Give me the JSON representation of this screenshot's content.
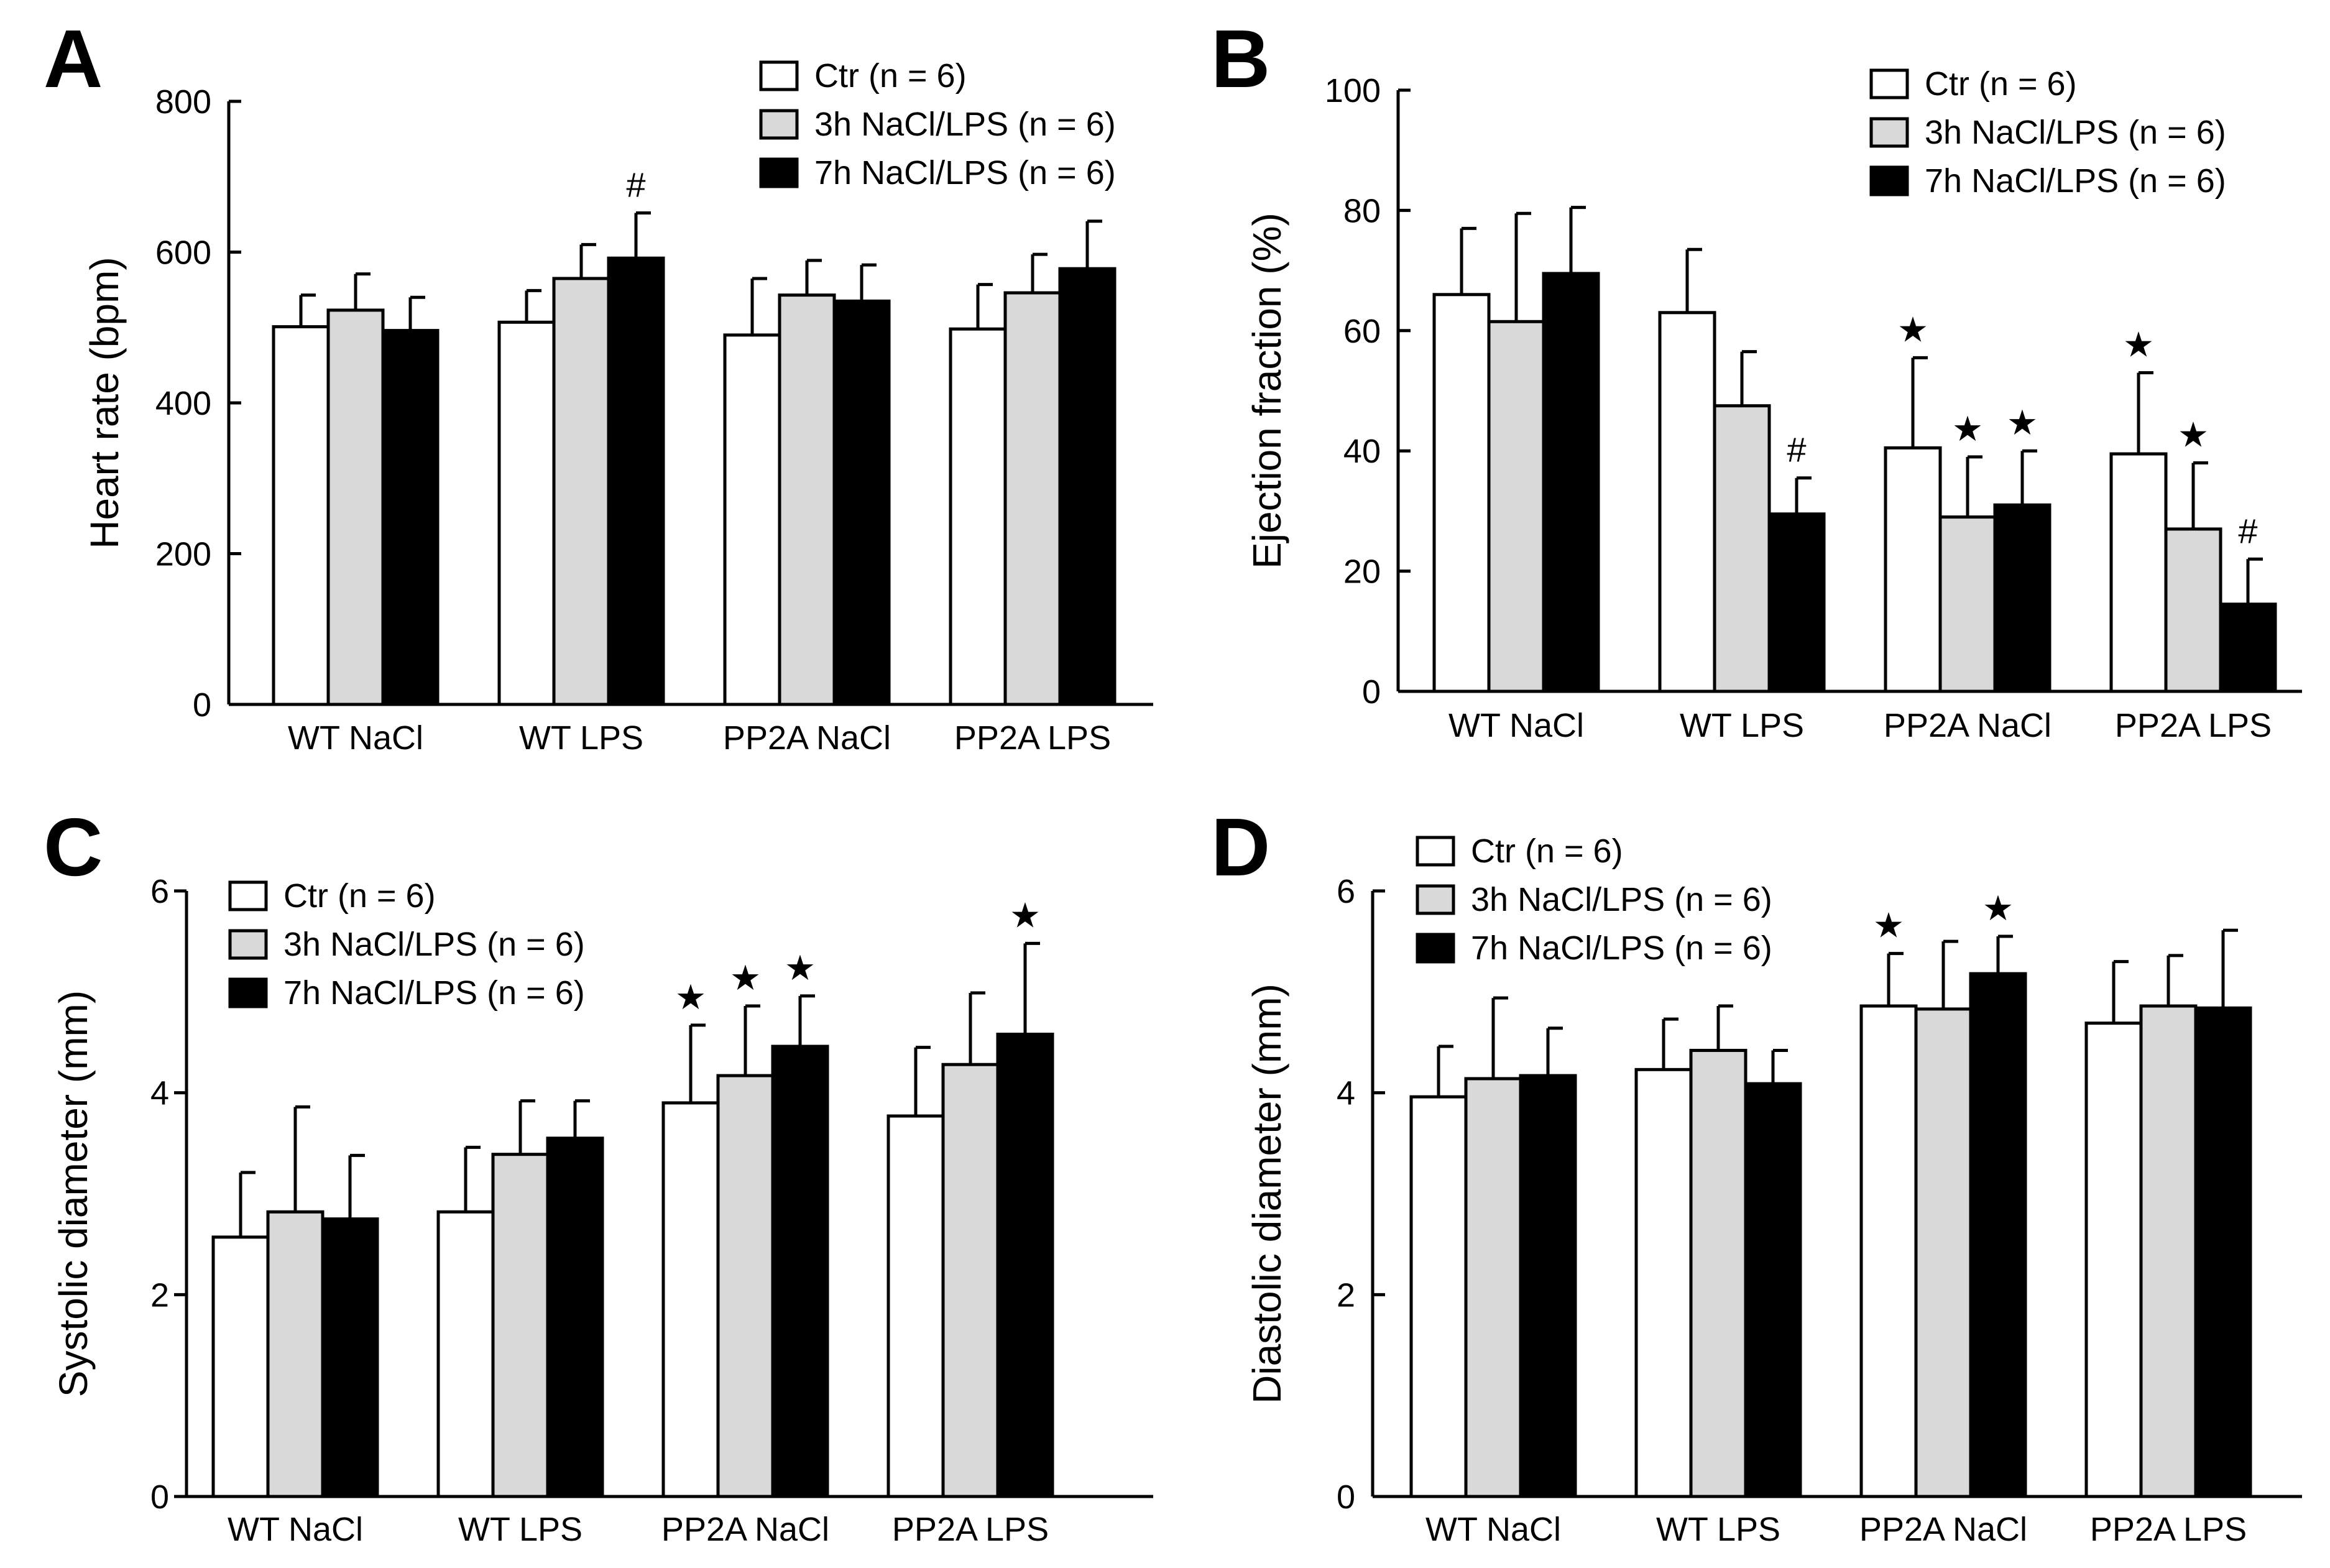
{
  "series_colors": [
    "#ffffff",
    "#d9d9d9",
    "#000000"
  ],
  "chart_data": [
    {
      "panel": "A",
      "type": "bar",
      "ylabel": "Heart rate (bpm)",
      "xlabel": "",
      "ylim": [
        0,
        800
      ],
      "yticks": [
        0,
        200,
        400,
        600,
        800
      ],
      "legend_position": "top-right",
      "categories": [
        "WT NaCl",
        "WT LPS",
        "PP2A NaCl",
        "PP2A LPS"
      ],
      "series": [
        {
          "name": "Ctr (n = 6)",
          "values": [
            501,
            507,
            490,
            498
          ],
          "errors": [
            42,
            42,
            75,
            59
          ],
          "markers": [
            "",
            "",
            "",
            ""
          ]
        },
        {
          "name": "3h NaCl/LPS (n = 6)",
          "values": [
            523,
            565,
            543,
            546
          ],
          "errors": [
            48,
            45,
            46,
            51
          ],
          "markers": [
            "",
            "",
            "",
            ""
          ]
        },
        {
          "name": "7h NaCl/LPS (n = 6)",
          "values": [
            496,
            592,
            535,
            578
          ],
          "errors": [
            44,
            60,
            48,
            63
          ],
          "markers": [
            "",
            "#",
            "",
            ""
          ]
        }
      ]
    },
    {
      "panel": "B",
      "type": "bar",
      "ylabel": "Ejection fraction (%)",
      "xlabel": "",
      "ylim": [
        0,
        100
      ],
      "yticks": [
        0,
        20,
        40,
        60,
        80,
        100
      ],
      "legend_position": "top-right",
      "categories": [
        "WT NaCl",
        "WT LPS",
        "PP2A NaCl",
        "PP2A LPS"
      ],
      "series": [
        {
          "name": "Ctr (n = 6)",
          "values": [
            66,
            63,
            40.5,
            39.5
          ],
          "errors": [
            11,
            10.5,
            15,
            13.5
          ],
          "markers": [
            "",
            "",
            "★",
            "★"
          ]
        },
        {
          "name": "3h NaCl/LPS (n = 6)",
          "values": [
            61.5,
            47.5,
            29,
            27
          ],
          "errors": [
            18,
            9,
            10,
            11
          ],
          "markers": [
            "",
            "",
            "★",
            "★"
          ]
        },
        {
          "name": "7h NaCl/LPS (n = 6)",
          "values": [
            69.5,
            29.5,
            31,
            14.5
          ],
          "errors": [
            11,
            6,
            9,
            7.5
          ],
          "markers": [
            "",
            "#",
            "★",
            "#"
          ]
        }
      ]
    },
    {
      "panel": "C",
      "type": "bar",
      "ylabel": "Systolic diameter (mm)",
      "xlabel": "",
      "ylim": [
        0,
        6
      ],
      "yticks": [
        0,
        2,
        4,
        6
      ],
      "legend_position": "top-left",
      "categories": [
        "WT NaCl",
        "WT LPS",
        "PP2A NaCl",
        "PP2A LPS"
      ],
      "series": [
        {
          "name": "Ctr (n = 6)",
          "values": [
            2.57,
            2.82,
            3.9,
            3.77
          ],
          "errors": [
            0.64,
            0.64,
            0.77,
            0.68
          ],
          "markers": [
            "",
            "",
            "★",
            ""
          ]
        },
        {
          "name": "3h NaCl/LPS (n = 6)",
          "values": [
            2.82,
            3.39,
            4.17,
            4.28
          ],
          "errors": [
            1.04,
            0.53,
            0.69,
            0.71
          ],
          "markers": [
            "",
            "",
            "★",
            ""
          ]
        },
        {
          "name": "7h NaCl/LPS (n = 6)",
          "values": [
            2.75,
            3.55,
            4.46,
            4.58
          ],
          "errors": [
            0.63,
            0.37,
            0.5,
            0.9
          ],
          "markers": [
            "",
            "",
            "★",
            "★"
          ]
        }
      ]
    },
    {
      "panel": "D",
      "type": "bar",
      "ylabel": "Diastolic diameter (mm)",
      "xlabel": "",
      "ylim": [
        0,
        6
      ],
      "yticks": [
        0,
        2,
        4,
        6
      ],
      "legend_position": "top-left",
      "categories": [
        "WT NaCl",
        "WT LPS",
        "PP2A NaCl",
        "PP2A LPS"
      ],
      "series": [
        {
          "name": "Ctr (n = 6)",
          "values": [
            3.96,
            4.23,
            4.86,
            4.69
          ],
          "errors": [
            0.5,
            0.5,
            0.52,
            0.61
          ],
          "markers": [
            "",
            "",
            "★",
            ""
          ]
        },
        {
          "name": "3h NaCl/LPS (n = 6)",
          "values": [
            4.14,
            4.42,
            4.83,
            4.86
          ],
          "errors": [
            0.8,
            0.44,
            0.67,
            0.5
          ],
          "markers": [
            "",
            "",
            "",
            ""
          ]
        },
        {
          "name": "7h NaCl/LPS (n = 6)",
          "values": [
            4.17,
            4.09,
            5.18,
            4.84
          ],
          "errors": [
            0.47,
            0.33,
            0.37,
            0.77
          ],
          "markers": [
            "",
            "",
            "★",
            ""
          ]
        }
      ]
    }
  ]
}
